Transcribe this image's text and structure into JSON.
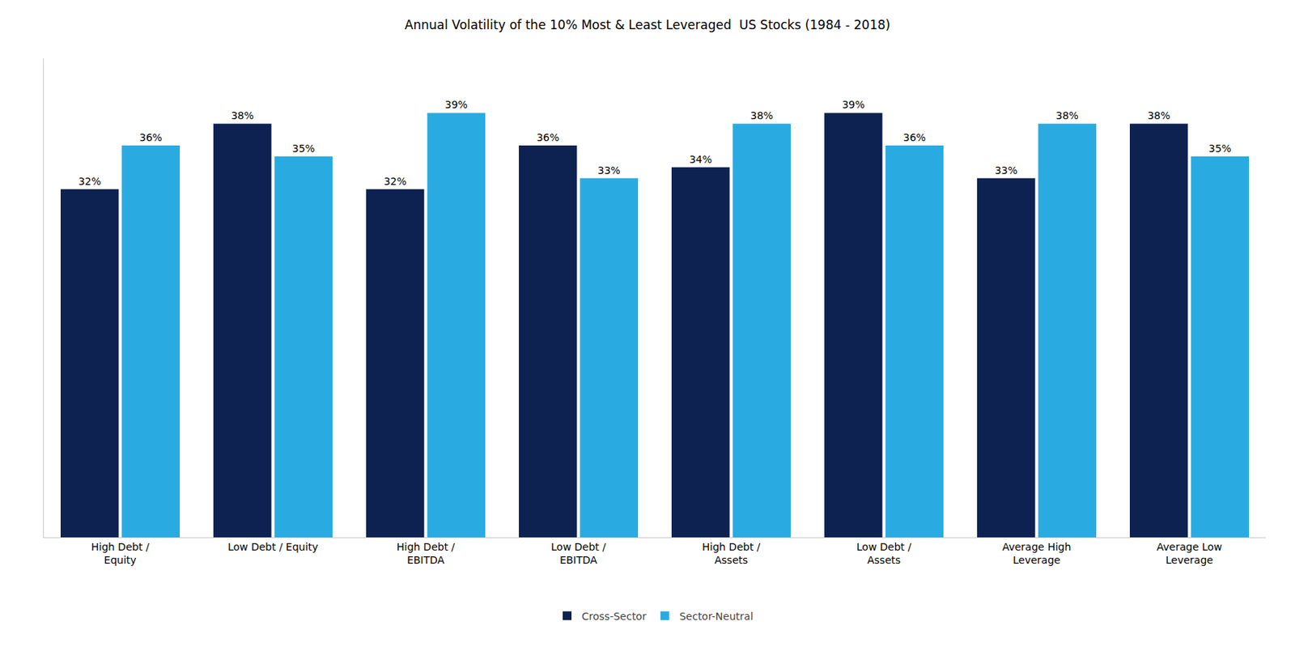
{
  "chart_data": {
    "type": "bar",
    "title": "Annual Volatility of the 10% Most & Least Leveraged  US Stocks (1984 - 2018)",
    "categories": [
      "High Debt /\nEquity",
      "Low Debt / Equity",
      "High Debt /\nEBITDA",
      "Low Debt /\nEBITDA",
      "High Debt /\nAssets",
      "Low Debt /\nAssets",
      "Average High\nLeverage",
      "Average Low\nLeverage"
    ],
    "series": [
      {
        "name": "Cross-Sector",
        "color": "#0d2251",
        "values": [
          32,
          38,
          32,
          36,
          34,
          39,
          33,
          38
        ],
        "value_labels": [
          "32%",
          "38%",
          "32%",
          "36%",
          "34%",
          "39%",
          "33%",
          "38%"
        ]
      },
      {
        "name": "Sector-Neutral",
        "color": "#29abe2",
        "values": [
          36,
          35,
          39,
          33,
          38,
          36,
          38,
          35
        ],
        "value_labels": [
          "36%",
          "35%",
          "39%",
          "33%",
          "38%",
          "36%",
          "38%",
          "35%"
        ]
      }
    ],
    "ylim": [
      0,
      44
    ],
    "grid": false,
    "legend": "bottom",
    "data_labels": true,
    "tick_labels": "x"
  }
}
